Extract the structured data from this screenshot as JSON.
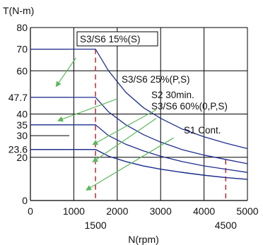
{
  "chart_data": {
    "type": "line",
    "ylabel": "T(N-m)",
    "xlabel": "N(rpm)",
    "xlim": [
      0,
      5000
    ],
    "ylim": [
      0,
      80
    ],
    "x_ticks": [
      {
        "value": 0,
        "label": "0",
        "row": 1
      },
      {
        "value": 1000,
        "label": "1000",
        "row": 1
      },
      {
        "value": 1500,
        "label": "1500",
        "row": 2
      },
      {
        "value": 2000,
        "label": "2000",
        "row": 1
      },
      {
        "value": 3000,
        "label": "3000",
        "row": 1
      },
      {
        "value": 4000,
        "label": "4000",
        "row": 1
      },
      {
        "value": 4500,
        "label": "4500",
        "row": 2
      },
      {
        "value": 5000,
        "label": "5000",
        "row": 1
      }
    ],
    "y_ticks": [
      {
        "value": 0,
        "label": "0"
      },
      {
        "value": 20,
        "label": "20"
      },
      {
        "value": 23.6,
        "label": "23.6"
      },
      {
        "value": 30,
        "label": "30"
      },
      {
        "value": 35,
        "label": "35"
      },
      {
        "value": 40,
        "label": "40"
      },
      {
        "value": 47.7,
        "label": "47.7"
      },
      {
        "value": 60,
        "label": "60"
      },
      {
        "value": 70,
        "label": "70"
      },
      {
        "value": 80,
        "label": "80"
      }
    ],
    "grid_y": [
      20,
      40,
      60,
      80
    ],
    "grid_x": [
      1000,
      2000,
      3000,
      4000,
      5000
    ],
    "markers_x": [
      1500,
      4500
    ],
    "series": [
      {
        "name": "S3/S6 15%(S)",
        "x": [
          0,
          1500,
          1800,
          2200,
          2600,
          3000,
          3500,
          4000,
          4500,
          5000
        ],
        "y": [
          70,
          70,
          60,
          50,
          43,
          38,
          33,
          29.5,
          26.5,
          24
        ]
      },
      {
        "name": "S3/S6 25%(P,S)",
        "x": [
          0,
          1500,
          1800,
          2200,
          2600,
          3000,
          3500,
          4000,
          4500,
          5000
        ],
        "y": [
          47.7,
          47.7,
          41,
          35,
          30.5,
          27,
          23.5,
          21,
          19,
          17
        ]
      },
      {
        "name": "S2 30min.",
        "x": [
          0,
          1500,
          1800,
          2200,
          2600,
          3000,
          3500,
          4000,
          4500,
          5000
        ],
        "y": [
          35,
          35,
          30,
          26,
          23,
          20.5,
          18,
          16,
          14.5,
          13
        ]
      },
      {
        "name": "S3/S6 60%(0,P,S)",
        "x": [
          0,
          1500,
          1800,
          2200,
          2600,
          3000,
          3500,
          4000,
          4500,
          5000
        ],
        "y": [
          23.6,
          23.6,
          20.5,
          18,
          16,
          14.5,
          13,
          11.7,
          10.6,
          9.8
        ]
      },
      {
        "name": "S1 Cont.",
        "x": [
          0,
          1500,
          1800,
          2200,
          2600,
          3000,
          3500,
          4000,
          4500,
          5000
        ],
        "y": [
          23.6,
          23.6,
          20.5,
          18,
          16,
          14.5,
          13,
          11.7,
          10.6,
          9.8
        ]
      }
    ],
    "annotations": [
      {
        "text": "S3/S6 15%(S)",
        "series": 0,
        "from": [
          1050,
          66
        ],
        "to": [
          600,
          53
        ]
      },
      {
        "text": "S3/S6 25%(P,S)",
        "series": 1,
        "from": [
          2000,
          47
        ],
        "to": [
          650,
          37
        ]
      },
      {
        "text": "S2 30min.",
        "series": 2,
        "from": [
          2900,
          42
        ],
        "to": [
          1450,
          26
        ]
      },
      {
        "text": "S3/S6 60%(0,P,S)",
        "series": 3,
        "from": [
          2900,
          38
        ],
        "to": [
          1450,
          18
        ]
      },
      {
        "text": "S1 Cont.",
        "series": 4,
        "from": [
          3300,
          29
        ],
        "to": [
          1300,
          5
        ]
      }
    ],
    "colors": {
      "curve": "#1f2f8f",
      "grid": "#000000",
      "marker": "#c0272d",
      "arrow": "#5cb85c"
    }
  }
}
